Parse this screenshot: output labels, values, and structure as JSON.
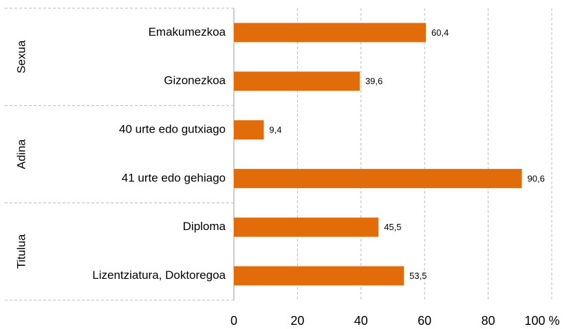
{
  "chart_data": {
    "type": "bar",
    "orientation": "horizontal",
    "groups": [
      "Sexua",
      "Adina",
      "Titulua"
    ],
    "categories": [
      "Emakumezkoa",
      "Gizonezkoa",
      "40 urte edo gutxiago",
      "41 urte edo gehiago",
      "Diploma",
      "Lizentziatura, Doktoregoa"
    ],
    "values": [
      60.4,
      39.6,
      9.4,
      90.6,
      45.5,
      53.5
    ],
    "value_labels": [
      "60,4",
      "39,6",
      "9,4",
      "90,6",
      "45,5",
      "53,5"
    ],
    "color": "#e36c0a",
    "xlim": [
      0,
      100
    ],
    "xticks": [
      0,
      20,
      40,
      60,
      80,
      {
        "value": 100,
        "label": "100 %"
      }
    ],
    "grid": true
  }
}
